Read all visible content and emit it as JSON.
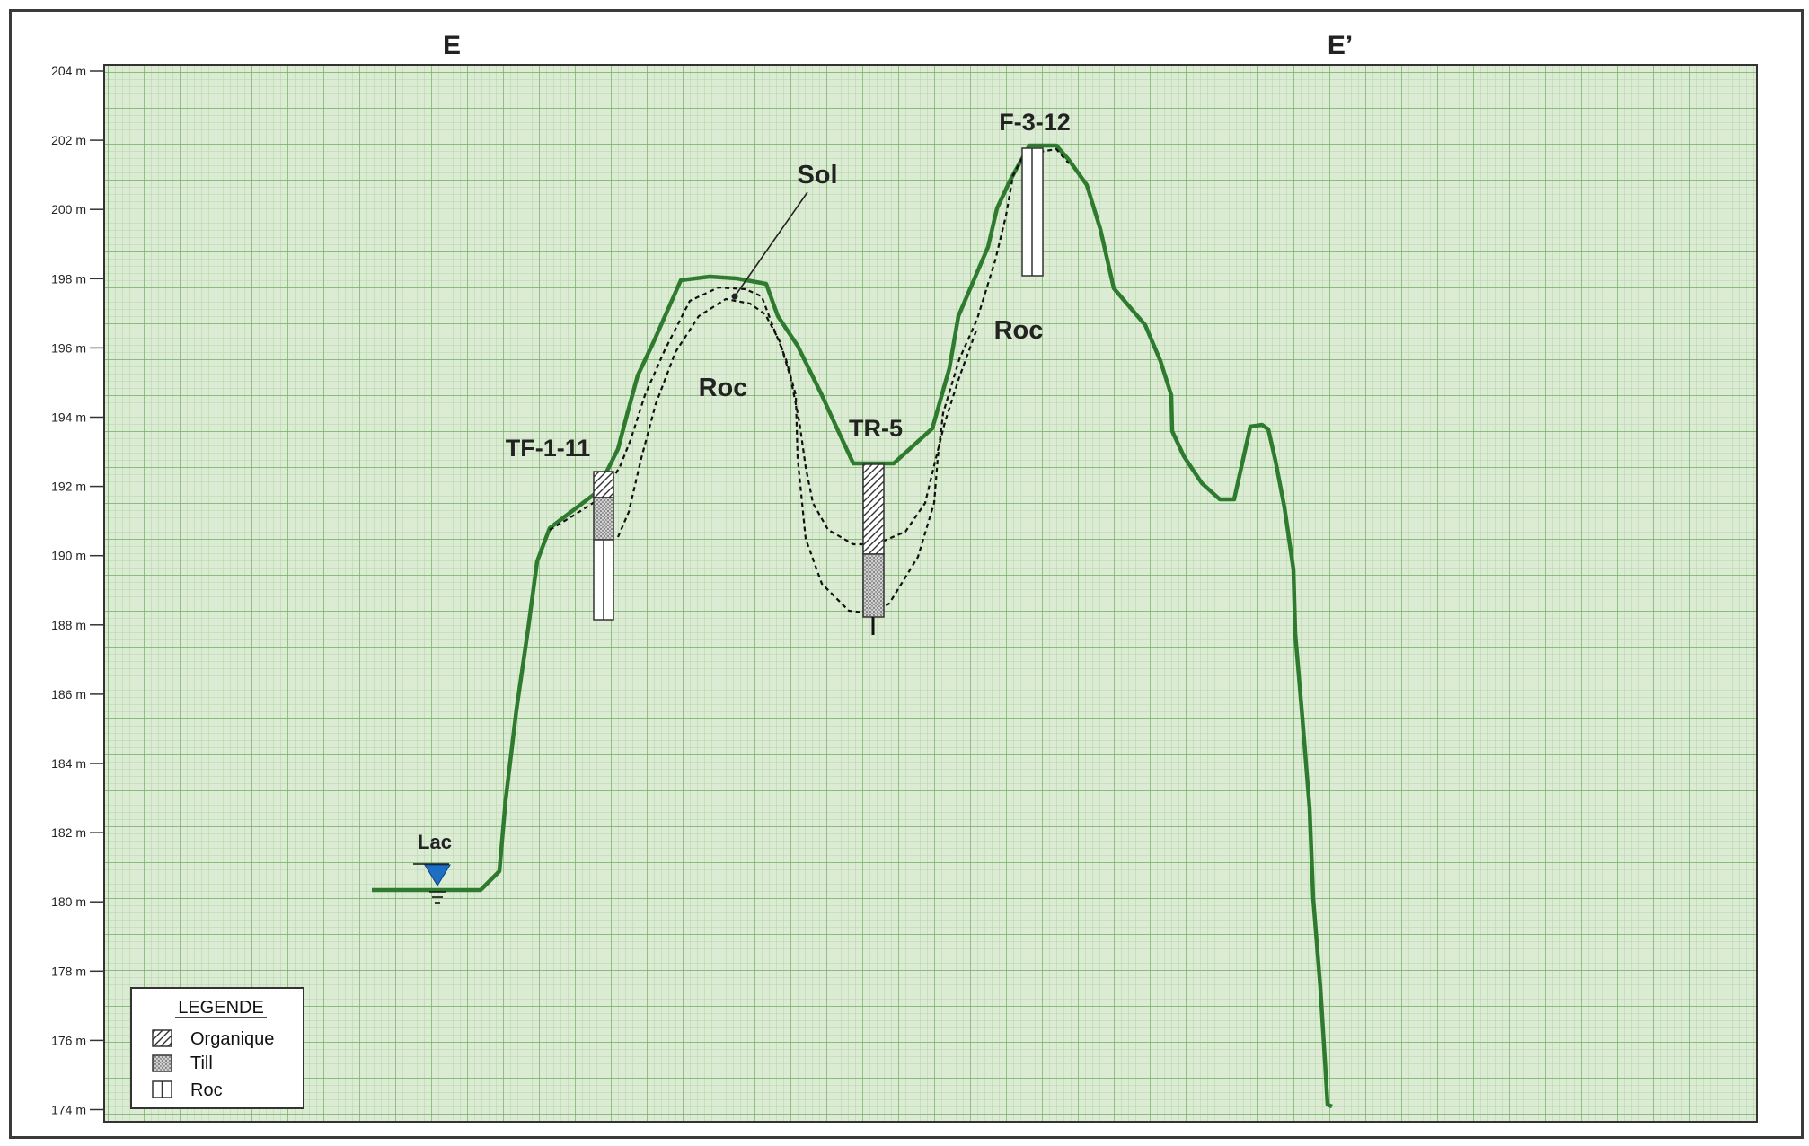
{
  "section": {
    "start_label": "E",
    "end_label": "E’"
  },
  "y_axis": {
    "ticks": [
      "204 m",
      "202 m",
      "200 m",
      "198 m",
      "196 m",
      "194 m",
      "192 m",
      "190 m",
      "188 m",
      "186 m",
      "184 m",
      "182 m",
      "180 m",
      "178 m",
      "176 m",
      "174 m"
    ]
  },
  "labels": {
    "sol": "Sol",
    "roc_left": "Roc",
    "roc_right": "Roc",
    "lac": "Lac"
  },
  "boreholes": [
    {
      "id": "TF-1-11",
      "layers": [
        "Organique",
        "Till",
        "Roc"
      ]
    },
    {
      "id": "TR-5",
      "layers": [
        "Organique",
        "Till"
      ]
    },
    {
      "id": "F-3-12",
      "layers": [
        "Roc"
      ]
    }
  ],
  "legend": {
    "title": "LEGENDE",
    "items": [
      {
        "pattern": "hatch",
        "label": "Organique"
      },
      {
        "pattern": "dots",
        "label": "Till"
      },
      {
        "pattern": "roc",
        "label": "Roc"
      }
    ]
  },
  "colors": {
    "grid_background": "#dcebd3",
    "grid_minor": "#a8d09a",
    "grid_major": "#6fae5e",
    "profile_line": "#2e7a2e",
    "water": "#1e6fc4"
  }
}
